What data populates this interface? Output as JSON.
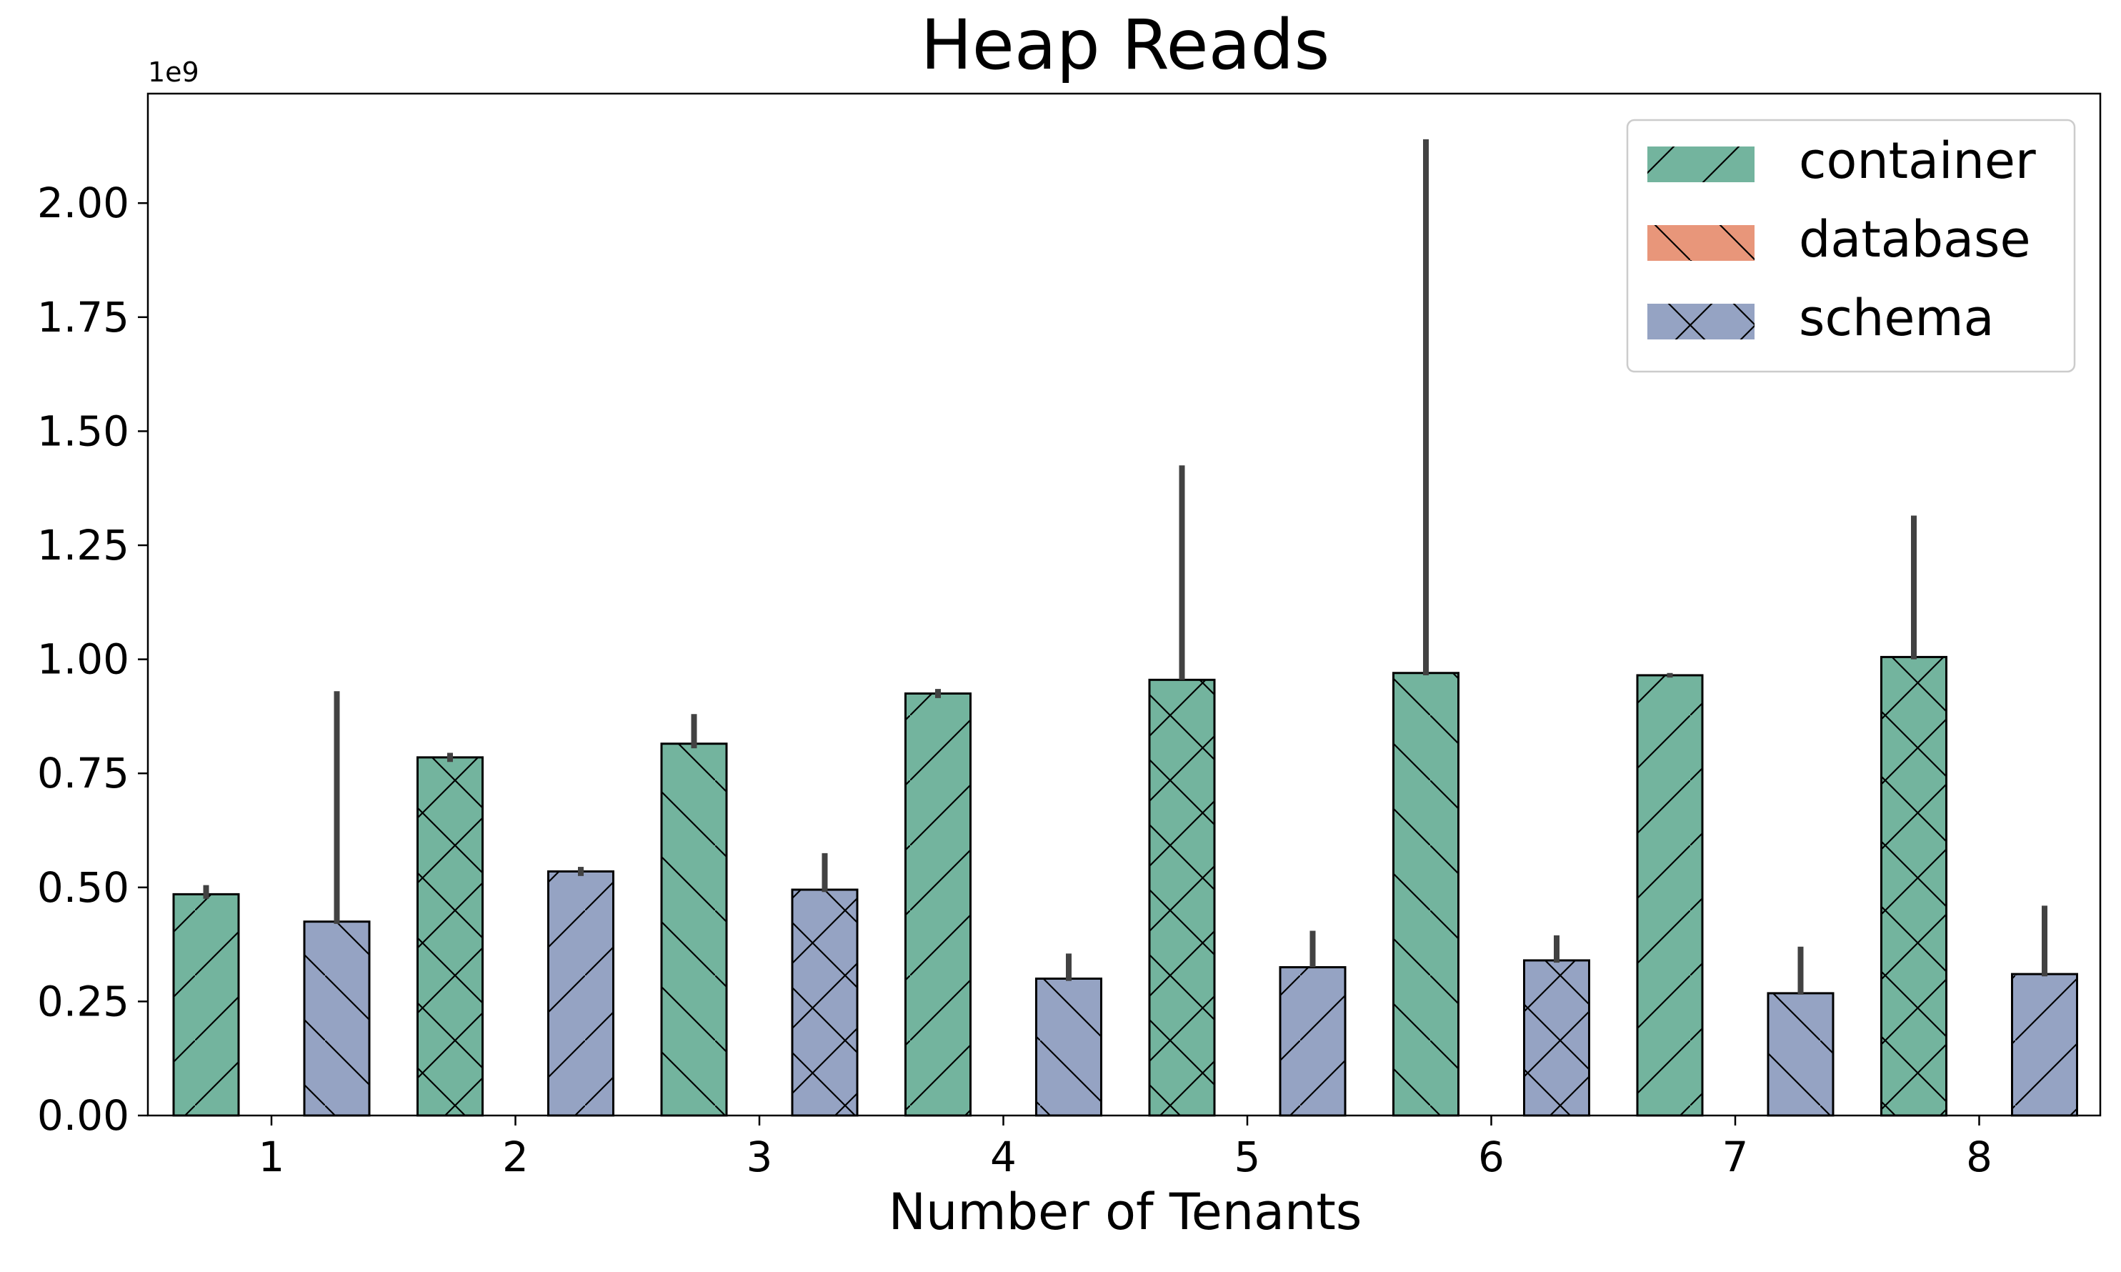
{
  "chart_data": {
    "type": "bar",
    "title": "Heap Reads",
    "xlabel": "Number of Tenants",
    "ylabel": "",
    "offset_text": "1e9",
    "categories": [
      "1",
      "2",
      "3",
      "4",
      "5",
      "6",
      "7",
      "8"
    ],
    "ylim": [
      0,
      2.24
    ],
    "yticks": [
      "0.00",
      "0.25",
      "0.50",
      "0.75",
      "1.00",
      "1.25",
      "1.50",
      "1.75",
      "2.00"
    ],
    "grid": false,
    "legend_position": "top-right",
    "series": [
      {
        "name": "container",
        "color": "#73b49e",
        "values": [
          0.485,
          0.785,
          0.815,
          0.925,
          0.955,
          0.97,
          0.965,
          1.005
        ],
        "error_low": [
          0.475,
          0.775,
          0.805,
          0.915,
          0.955,
          0.965,
          0.96,
          1.0
        ],
        "error_high": [
          0.505,
          0.795,
          0.88,
          0.935,
          1.425,
          2.14,
          0.97,
          1.315
        ],
        "hatches": [
          "/",
          "x",
          "\\",
          "/",
          "x",
          "\\",
          "/",
          "x"
        ]
      },
      {
        "name": "database",
        "color": "#e8967a",
        "values": [
          0,
          0,
          0,
          0,
          0,
          0,
          0,
          0
        ],
        "hatches": [
          "\\",
          "\\",
          "\\",
          "\\",
          "\\",
          "\\",
          "\\",
          "\\"
        ]
      },
      {
        "name": "schema",
        "color": "#95a3c3",
        "values": [
          0.425,
          0.535,
          0.495,
          0.3,
          0.325,
          0.34,
          0.268,
          0.31
        ],
        "error_low": [
          0.42,
          0.525,
          0.49,
          0.295,
          0.325,
          0.335,
          0.265,
          0.305
        ],
        "error_high": [
          0.93,
          0.545,
          0.575,
          0.355,
          0.405,
          0.395,
          0.37,
          0.46
        ],
        "hatches": [
          "\\",
          "/",
          "x",
          "\\",
          "/",
          "x",
          "\\",
          "/"
        ]
      }
    ],
    "legend_hatches": [
      "/",
      "\\",
      "x"
    ]
  }
}
